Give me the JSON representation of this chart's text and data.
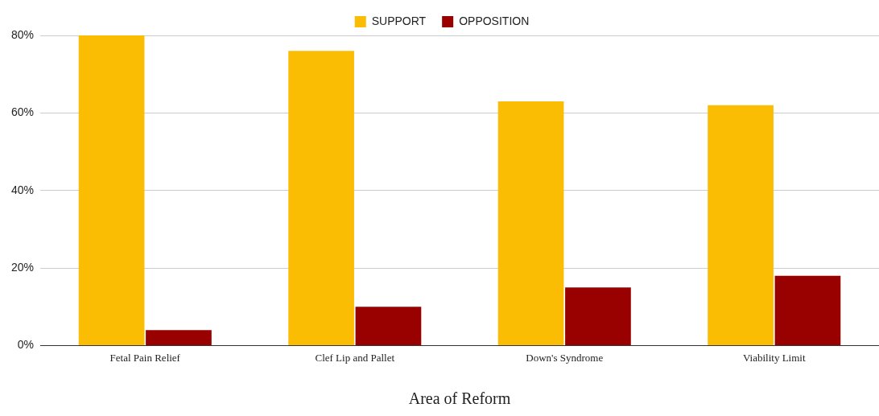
{
  "chart_data": {
    "type": "bar",
    "xlabel": "Area of Reform",
    "categories": [
      "Fetal Pain Relief",
      "Clef Lip and Pallet",
      "Down's Syndrome",
      "Viability Limit"
    ],
    "series": [
      {
        "name": "SUPPORT",
        "color": "#fbbc04",
        "values": [
          80,
          76,
          63,
          62
        ]
      },
      {
        "name": "OPPOSITION",
        "color": "#990000",
        "values": [
          4,
          10,
          15,
          18
        ]
      }
    ],
    "ylim": [
      0,
      80
    ],
    "yticks": [
      {
        "value": 0,
        "label": "0%"
      },
      {
        "value": 20,
        "label": "20%"
      },
      {
        "value": 40,
        "label": "40%"
      },
      {
        "value": 60,
        "label": "60%"
      },
      {
        "value": 80,
        "label": "80%"
      }
    ],
    "grid": "y",
    "legend": "top"
  }
}
